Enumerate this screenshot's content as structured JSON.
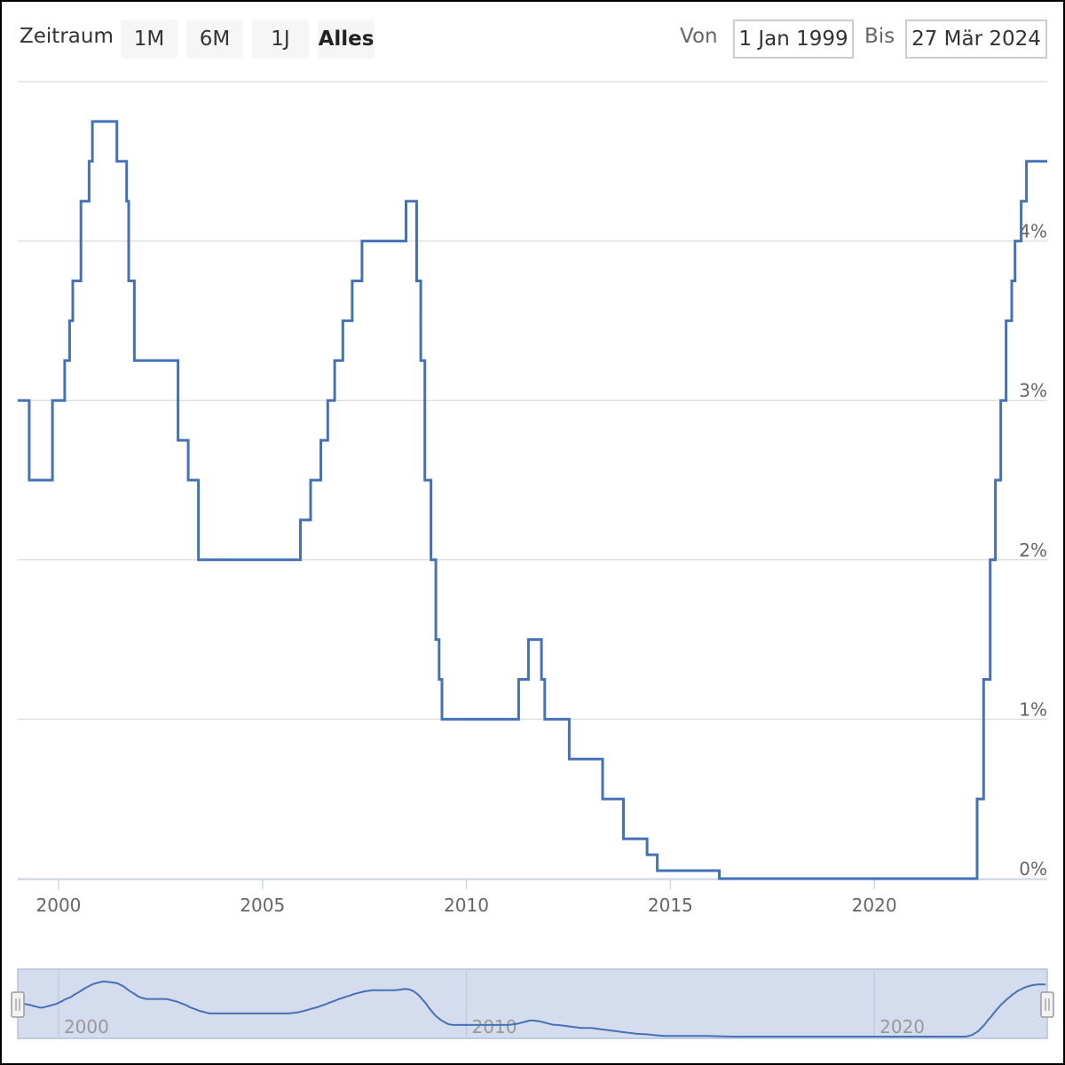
{
  "toolbar": {
    "zeitraum_label": "Zeitraum",
    "range_buttons": [
      "1M",
      "6M",
      "1J",
      "Alles"
    ],
    "selected_range": "Alles",
    "von_label": "Von",
    "von_value": "1 Jan 1999",
    "bis_label": "Bis",
    "bis_value": "27 Mär 2024"
  },
  "colors": {
    "line": "#4572b7",
    "grid": "#e0e0e0",
    "navigator_fill": "#d4dced",
    "navigator_border": "#b5c1d9"
  },
  "chart_data": {
    "type": "line",
    "step": true,
    "x_start": 1999.0,
    "x_end": 2024.24,
    "ylim": [
      0,
      5
    ],
    "y_ticks": [
      0,
      1,
      2,
      3,
      4
    ],
    "y_tick_labels": [
      "0%",
      "1%",
      "2%",
      "3%",
      "4%"
    ],
    "x_ticks": [
      2000,
      2005,
      2010,
      2015,
      2020
    ],
    "x_tick_labels": [
      "2000",
      "2005",
      "2010",
      "2015",
      "2020"
    ],
    "navigator_tick_labels": [
      "2000",
      "2010",
      "2020"
    ],
    "navigator_ticks": [
      2000,
      2010,
      2020
    ],
    "grid": true,
    "series": [
      {
        "values": [
          [
            1999.0,
            3.0
          ],
          [
            1999.28,
            2.5
          ],
          [
            1999.85,
            3.0
          ],
          [
            2000.15,
            3.25
          ],
          [
            2000.27,
            3.5
          ],
          [
            2000.35,
            3.75
          ],
          [
            2000.55,
            4.25
          ],
          [
            2000.75,
            4.5
          ],
          [
            2000.83,
            4.75
          ],
          [
            2001.43,
            4.5
          ],
          [
            2001.67,
            4.25
          ],
          [
            2001.72,
            3.75
          ],
          [
            2001.86,
            3.25
          ],
          [
            2002.93,
            2.75
          ],
          [
            2003.18,
            2.5
          ],
          [
            2003.43,
            2.0
          ],
          [
            2005.93,
            2.25
          ],
          [
            2006.18,
            2.5
          ],
          [
            2006.43,
            2.75
          ],
          [
            2006.6,
            3.0
          ],
          [
            2006.77,
            3.25
          ],
          [
            2006.97,
            3.5
          ],
          [
            2007.2,
            3.75
          ],
          [
            2007.44,
            4.0
          ],
          [
            2008.52,
            4.25
          ],
          [
            2008.78,
            3.75
          ],
          [
            2008.88,
            3.25
          ],
          [
            2008.98,
            2.5
          ],
          [
            2009.13,
            2.0
          ],
          [
            2009.25,
            1.5
          ],
          [
            2009.33,
            1.25
          ],
          [
            2009.4,
            1.0
          ],
          [
            2011.28,
            1.25
          ],
          [
            2011.52,
            1.5
          ],
          [
            2011.84,
            1.25
          ],
          [
            2011.92,
            1.0
          ],
          [
            2012.52,
            0.75
          ],
          [
            2013.34,
            0.5
          ],
          [
            2013.85,
            0.25
          ],
          [
            2014.43,
            0.15
          ],
          [
            2014.68,
            0.05
          ],
          [
            2016.2,
            0.0
          ],
          [
            2022.52,
            0.5
          ],
          [
            2022.68,
            1.25
          ],
          [
            2022.84,
            2.0
          ],
          [
            2022.97,
            2.5
          ],
          [
            2023.1,
            3.0
          ],
          [
            2023.23,
            3.5
          ],
          [
            2023.37,
            3.75
          ],
          [
            2023.45,
            4.0
          ],
          [
            2023.6,
            4.25
          ],
          [
            2023.73,
            4.5
          ],
          [
            2024.24,
            4.5
          ]
        ]
      }
    ]
  }
}
